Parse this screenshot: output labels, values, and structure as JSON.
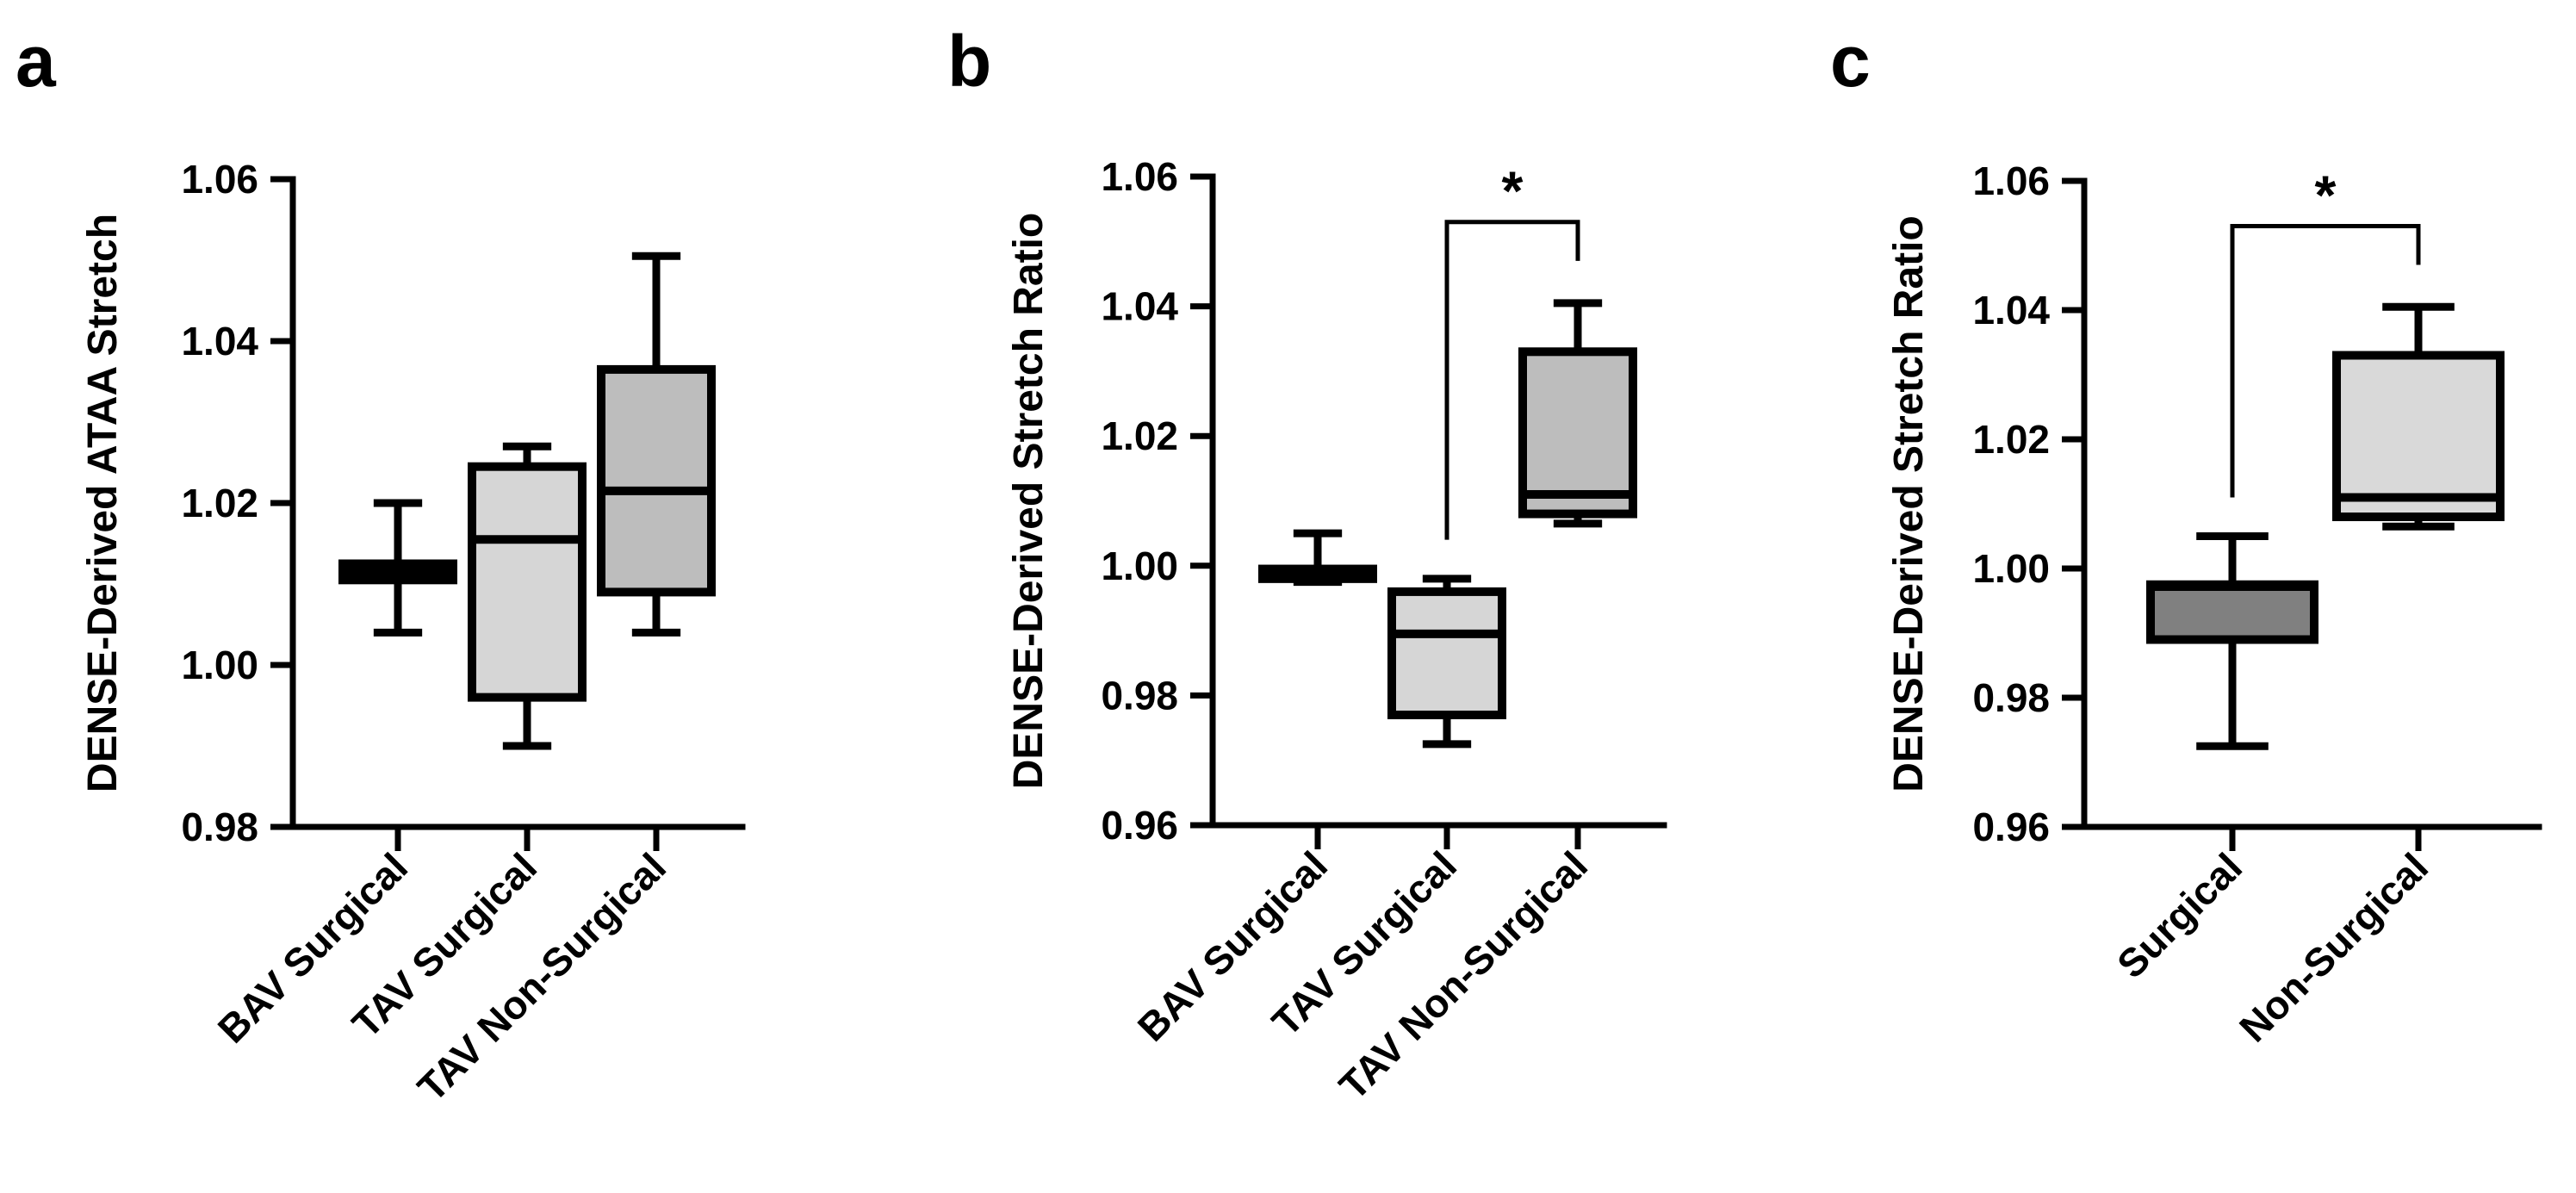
{
  "chart_data": [
    {
      "panel": "a",
      "type": "box",
      "ylabel": "DENSE-Derived ATAA Stretch",
      "xlabel": "",
      "ylim": [
        0.98,
        1.06
      ],
      "yticks": [
        0.98,
        1.0,
        1.02,
        1.04,
        1.06
      ],
      "ytick_labels": [
        "0.98",
        "1.00",
        "1.02",
        "1.04",
        "1.06"
      ],
      "categories": [
        "BAV Surgical",
        "TAV Surgical",
        "TAV Non-Surgical"
      ],
      "boxes": [
        {
          "min": 1.004,
          "q1": 1.0105,
          "median": 1.0115,
          "q3": 1.0125,
          "max": 1.02,
          "fill": "#c8c8c8"
        },
        {
          "min": 0.99,
          "q1": 0.996,
          "median": 1.0155,
          "q3": 1.0245,
          "max": 1.027,
          "fill": "#d6d6d6"
        },
        {
          "min": 1.004,
          "q1": 1.009,
          "median": 1.0215,
          "q3": 1.0365,
          "max": 1.0505,
          "fill": "#bdbdbd"
        }
      ],
      "significance": []
    },
    {
      "panel": "b",
      "type": "box",
      "ylabel": "DENSE-Derived Stretch Ratio",
      "xlabel": "",
      "ylim": [
        0.96,
        1.06
      ],
      "yticks": [
        0.96,
        0.98,
        1.0,
        1.02,
        1.04,
        1.06
      ],
      "ytick_labels": [
        "0.96",
        "0.98",
        "1.00",
        "1.02",
        "1.04",
        "1.06"
      ],
      "categories": [
        "BAV Surgical",
        "TAV Surgical",
        "TAV Non-Surgical"
      ],
      "boxes": [
        {
          "min": 0.9975,
          "q1": 0.998,
          "median": 0.9988,
          "q3": 0.9995,
          "max": 1.005,
          "fill": "#c8c8c8"
        },
        {
          "min": 0.9725,
          "q1": 0.977,
          "median": 0.9895,
          "q3": 0.996,
          "max": 0.998,
          "fill": "#d6d6d6"
        },
        {
          "min": 1.0065,
          "q1": 1.008,
          "median": 1.011,
          "q3": 1.033,
          "max": 1.0405,
          "fill": "#bdbdbd"
        }
      ],
      "significance": [
        {
          "from": 1,
          "to": 2,
          "label": "*",
          "y": 1.053,
          "left_drop": 1.004,
          "right_drop": 1.047
        }
      ]
    },
    {
      "panel": "c",
      "type": "box",
      "ylabel": "DENSE-Derived Stretch Ratio",
      "xlabel": "",
      "ylim": [
        0.96,
        1.06
      ],
      "yticks": [
        0.96,
        0.98,
        1.0,
        1.02,
        1.04,
        1.06
      ],
      "ytick_labels": [
        "0.96",
        "0.98",
        "1.00",
        "1.02",
        "1.04",
        "1.06"
      ],
      "categories": [
        "Surgical",
        "Non-Surgical"
      ],
      "boxes": [
        {
          "min": 0.9725,
          "q1": 0.989,
          "median": 0.9972,
          "q3": 0.9975,
          "max": 1.005,
          "fill": "#808080"
        },
        {
          "min": 1.0065,
          "q1": 1.008,
          "median": 1.011,
          "q3": 1.033,
          "max": 1.0405,
          "fill": "#d9d9d9"
        }
      ],
      "significance": [
        {
          "from": 0,
          "to": 1,
          "label": "*",
          "y": 1.053,
          "left_drop": 1.011,
          "right_drop": 1.047
        }
      ]
    }
  ]
}
